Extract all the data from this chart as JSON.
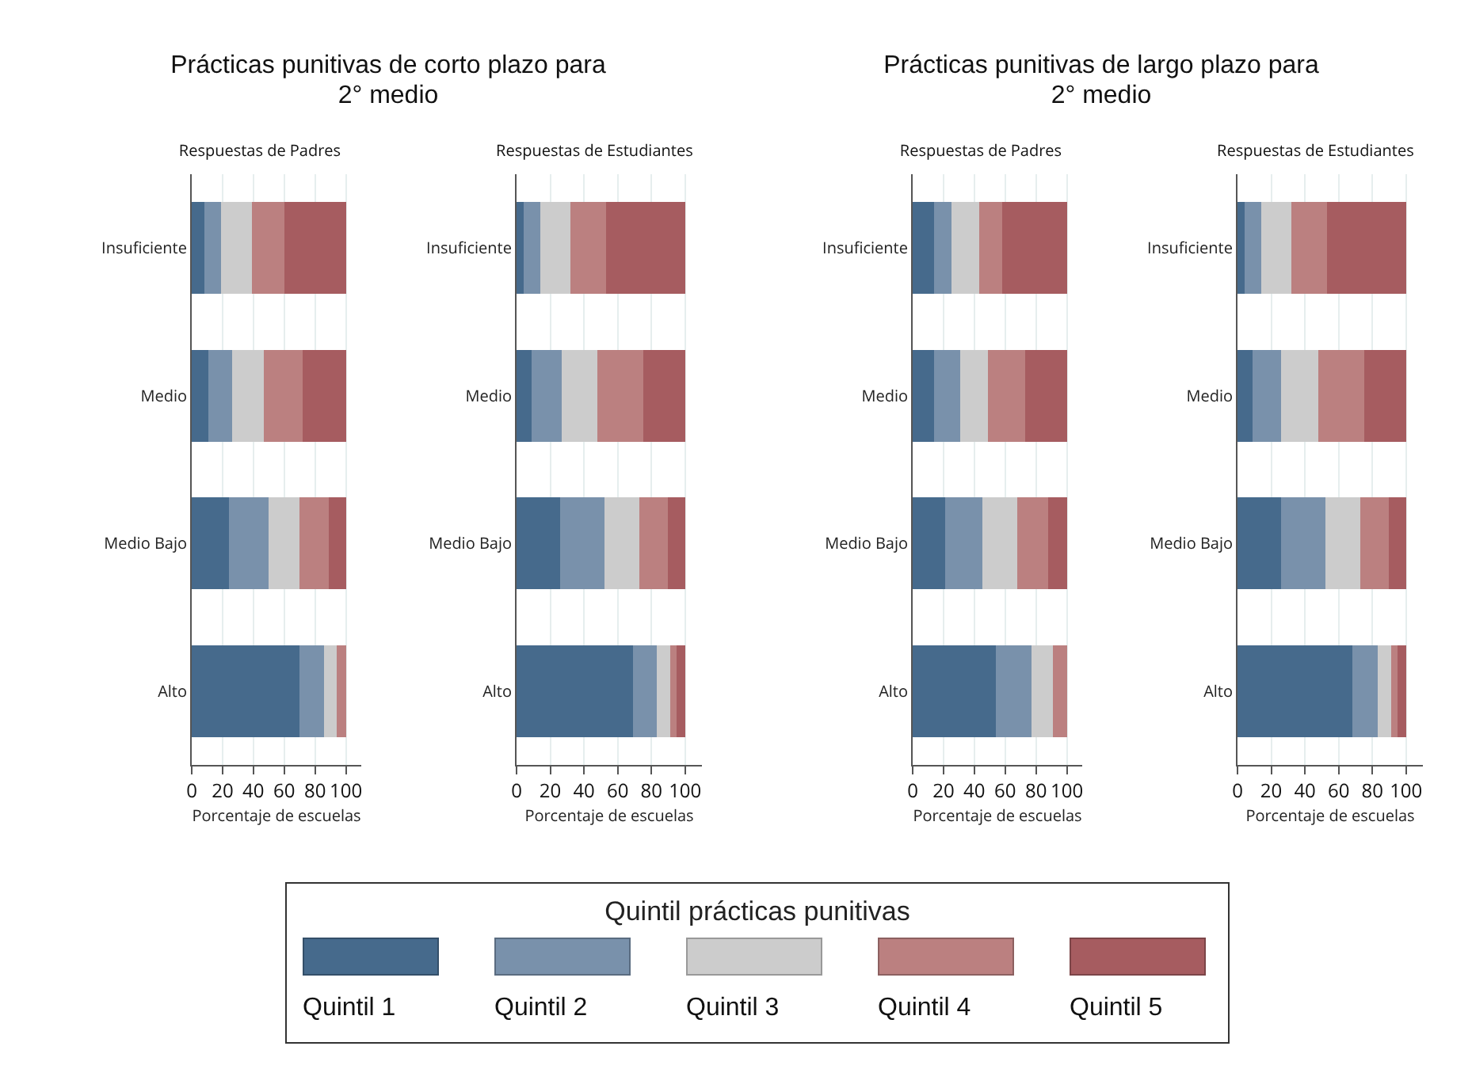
{
  "chart_data": [
    {
      "type": "bar",
      "title": "Prácticas punitivas de corto plazo para 2° medio",
      "subtitle": "Respuestas de Padres",
      "xlabel": "Porcentaje de escuelas",
      "orientation": "horizontal",
      "stacked": true,
      "grid": "x",
      "legend": "bottom",
      "legend_title": "Quintil prácticas punitivas",
      "xlim": [
        0,
        110
      ],
      "xticks": [
        0,
        20,
        40,
        60,
        80,
        100
      ],
      "categories": [
        "Insuficiente",
        "Medio",
        "Medio Bajo",
        "Alto"
      ],
      "series": [
        {
          "name": "Quintil 1",
          "color": "#466a8c",
          "values": [
            8,
            11,
            24,
            70
          ]
        },
        {
          "name": "Quintil 2",
          "color": "#7991ab",
          "values": [
            11,
            15,
            26,
            16
          ]
        },
        {
          "name": "Quintil 3",
          "color": "#cccccc",
          "values": [
            20,
            21,
            20,
            8
          ]
        },
        {
          "name": "Quintil 4",
          "color": "#bb8080",
          "values": [
            21,
            25,
            19,
            6
          ]
        },
        {
          "name": "Quintil 5",
          "color": "#a65c60",
          "values": [
            40,
            28,
            11,
            0
          ]
        }
      ]
    },
    {
      "type": "bar",
      "subtitle": "Respuestas de Estudiantes",
      "xlabel": "Porcentaje de escuelas",
      "orientation": "horizontal",
      "stacked": true,
      "grid": "x",
      "xlim": [
        0,
        110
      ],
      "xticks": [
        0,
        20,
        40,
        60,
        80,
        100
      ],
      "categories": [
        "Insuficiente",
        "Medio",
        "Medio Bajo",
        "Alto"
      ],
      "series": [
        {
          "color": "#466a8c",
          "values": [
            4,
            9,
            26,
            69
          ]
        },
        {
          "color": "#7991ab",
          "values": [
            10,
            18,
            26,
            14
          ]
        },
        {
          "color": "#cccccc",
          "values": [
            18,
            21,
            21,
            8
          ]
        },
        {
          "color": "#bb8080",
          "values": [
            21,
            27,
            17,
            4
          ]
        },
        {
          "color": "#a65c60",
          "values": [
            47,
            25,
            10,
            5
          ]
        }
      ]
    },
    {
      "type": "bar",
      "title": "Prácticas punitivas de largo plazo para 2° medio",
      "subtitle": "Respuestas de Padres",
      "xlabel": "Porcentaje de escuelas",
      "orientation": "horizontal",
      "stacked": true,
      "grid": "x",
      "xlim": [
        0,
        110
      ],
      "xticks": [
        0,
        20,
        40,
        60,
        80,
        100
      ],
      "categories": [
        "Insuficiente",
        "Medio",
        "Medio Bajo",
        "Alto"
      ],
      "series": [
        {
          "color": "#466a8c",
          "values": [
            14,
            14,
            21,
            54
          ]
        },
        {
          "color": "#7991ab",
          "values": [
            11,
            17,
            24,
            23
          ]
        },
        {
          "color": "#cccccc",
          "values": [
            18,
            18,
            23,
            14
          ]
        },
        {
          "color": "#bb8080",
          "values": [
            15,
            24,
            20,
            9
          ]
        },
        {
          "color": "#a65c60",
          "values": [
            42,
            27,
            12,
            0
          ]
        }
      ]
    },
    {
      "type": "bar",
      "subtitle": "Respuestas de Estudiantes",
      "xlabel": "Porcentaje de escuelas",
      "orientation": "horizontal",
      "stacked": true,
      "grid": "x",
      "xlim": [
        0,
        110
      ],
      "xticks": [
        0,
        20,
        40,
        60,
        80,
        100
      ],
      "categories": [
        "Insuficiente",
        "Medio",
        "Medio Bajo",
        "Alto"
      ],
      "series": [
        {
          "color": "#466a8c",
          "values": [
            4,
            9,
            26,
            68
          ]
        },
        {
          "color": "#7991ab",
          "values": [
            10,
            17,
            26,
            15
          ]
        },
        {
          "color": "#cccccc",
          "values": [
            18,
            22,
            21,
            8
          ]
        },
        {
          "color": "#bb8080",
          "values": [
            21,
            27,
            17,
            4
          ]
        },
        {
          "color": "#a65c60",
          "values": [
            47,
            25,
            10,
            5
          ]
        }
      ]
    }
  ]
}
